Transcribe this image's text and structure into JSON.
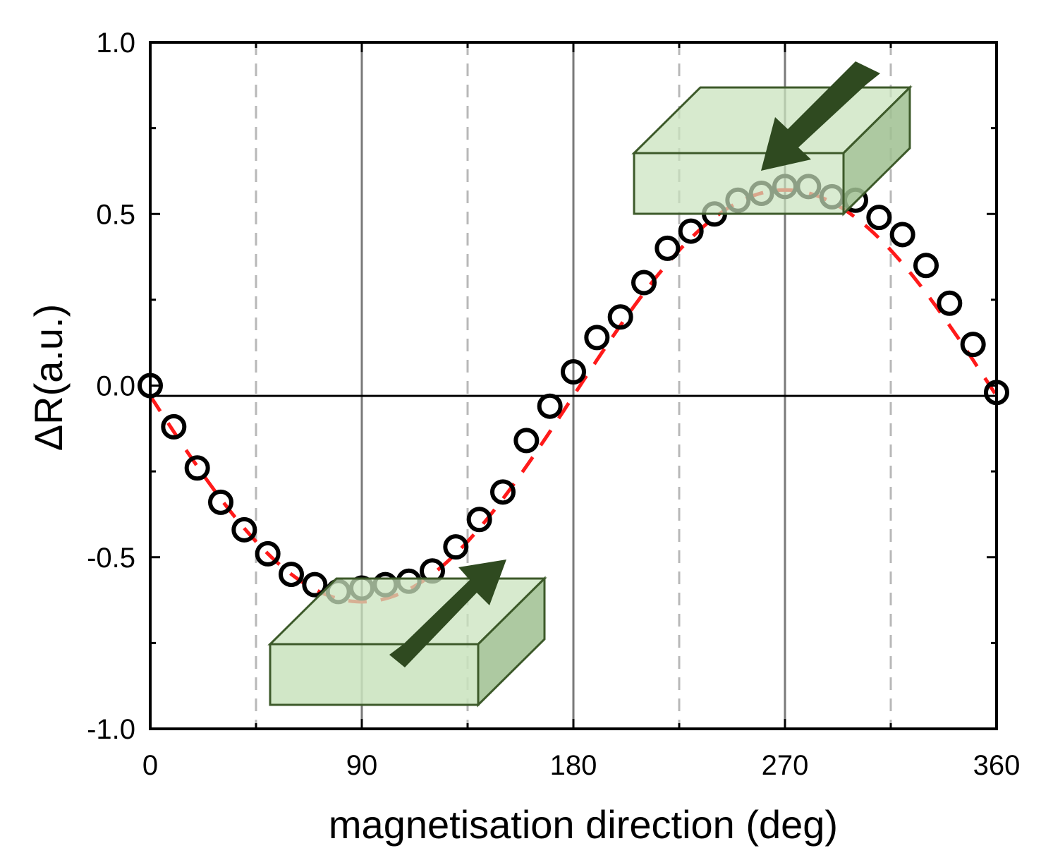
{
  "chart_data": {
    "type": "scatter",
    "title": "",
    "xlabel": "magnetisation direction (deg)",
    "ylabel": "ΔR(a.u.)",
    "xlim": [
      0,
      360
    ],
    "ylim": [
      -1.0,
      1.0
    ],
    "x_ticks": [
      0,
      90,
      180,
      270,
      360
    ],
    "x_tick_labels": [
      "0",
      "90",
      "180",
      "270",
      "360"
    ],
    "y_ticks": [
      -1.0,
      -0.5,
      0.0,
      0.5,
      1.0
    ],
    "y_tick_labels": [
      "-1.0",
      "-0.5",
      "0.0",
      "0.5",
      "1.0"
    ],
    "grid": {
      "solid_x": [
        90,
        180,
        270
      ],
      "dashed_x": [
        45,
        135,
        225,
        315
      ],
      "zero_line_y": -0.03
    },
    "series": [
      {
        "kind": "markers",
        "marker": "open-circle",
        "color": "#000000",
        "x": [
          0,
          10,
          20,
          30,
          40,
          50,
          60,
          70,
          80,
          90,
          100,
          110,
          120,
          130,
          140,
          150,
          160,
          170,
          180,
          190,
          200,
          210,
          220,
          230,
          240,
          250,
          260,
          270,
          280,
          290,
          300,
          310,
          320,
          330,
          340,
          350,
          360
        ],
        "y": [
          0.0,
          -0.12,
          -0.24,
          -0.34,
          -0.42,
          -0.49,
          -0.55,
          -0.58,
          -0.6,
          -0.59,
          -0.58,
          -0.57,
          -0.54,
          -0.47,
          -0.39,
          -0.31,
          -0.16,
          -0.06,
          0.04,
          0.14,
          0.2,
          0.3,
          0.4,
          0.45,
          0.5,
          0.54,
          0.56,
          0.58,
          0.58,
          0.55,
          0.54,
          0.49,
          0.44,
          0.35,
          0.24,
          0.12,
          -0.02
        ]
      },
      {
        "kind": "fit-line",
        "style": "dashed",
        "color": "#ff1a1a",
        "amplitude": 0.6,
        "offset": -0.03,
        "period_deg": 360,
        "phase": "negative-sine"
      }
    ],
    "insets": [
      {
        "name": "lower-block",
        "arrow_direction": "up-right",
        "color": "#c9e3bd",
        "edge_color": "#3d5a2a",
        "arrow_color": "#2f4a20"
      },
      {
        "name": "upper-block",
        "arrow_direction": "down-left",
        "color": "#c9e3bd",
        "edge_color": "#3d5a2a",
        "arrow_color": "#2f4a20"
      }
    ]
  }
}
